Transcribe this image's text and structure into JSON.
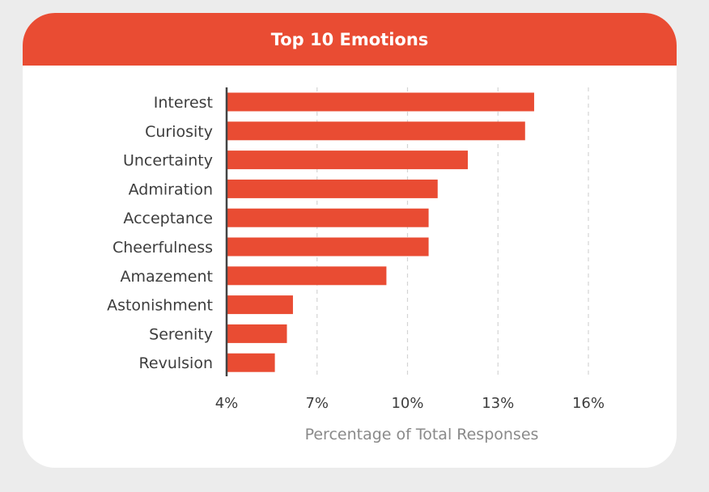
{
  "chart_data": {
    "type": "bar",
    "orientation": "horizontal",
    "title": "Top 10 Emotions",
    "categories": [
      "Interest",
      "Curiosity",
      "Uncertainty",
      "Admiration",
      "Acceptance",
      "Cheerfulness",
      "Amazement",
      "Astonishment",
      "Serenity",
      "Revulsion"
    ],
    "values": [
      14.2,
      13.9,
      12.0,
      11.0,
      10.7,
      10.7,
      9.3,
      6.2,
      6.0,
      5.6
    ],
    "xlabel": "Percentage of Total Responses",
    "ylabel": "",
    "xlim": [
      4,
      16
    ],
    "xticks": [
      4,
      7,
      10,
      13,
      16
    ],
    "xtick_labels": [
      "4%",
      "7%",
      "10%",
      "13%",
      "16%"
    ],
    "grid": "vertical dashed",
    "legend": "none"
  },
  "colors": {
    "accent": "#e94c33",
    "background": "#ececec",
    "card": "#ffffff",
    "text": "#3d3d3d",
    "axis_title": "#8a8a8a",
    "grid": "#d4d4d4"
  }
}
